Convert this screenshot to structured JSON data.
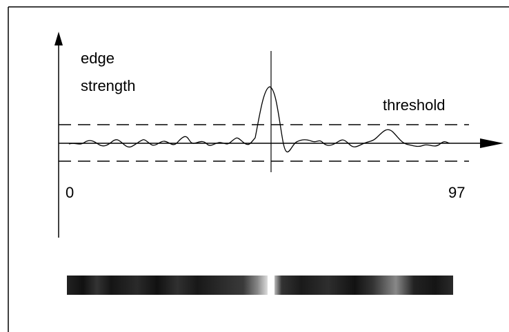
{
  "axis_label": {
    "line1": "edge",
    "line2": "strength"
  },
  "threshold_label": "threshold",
  "x_start_label": "0",
  "x_end_label": "97"
}
